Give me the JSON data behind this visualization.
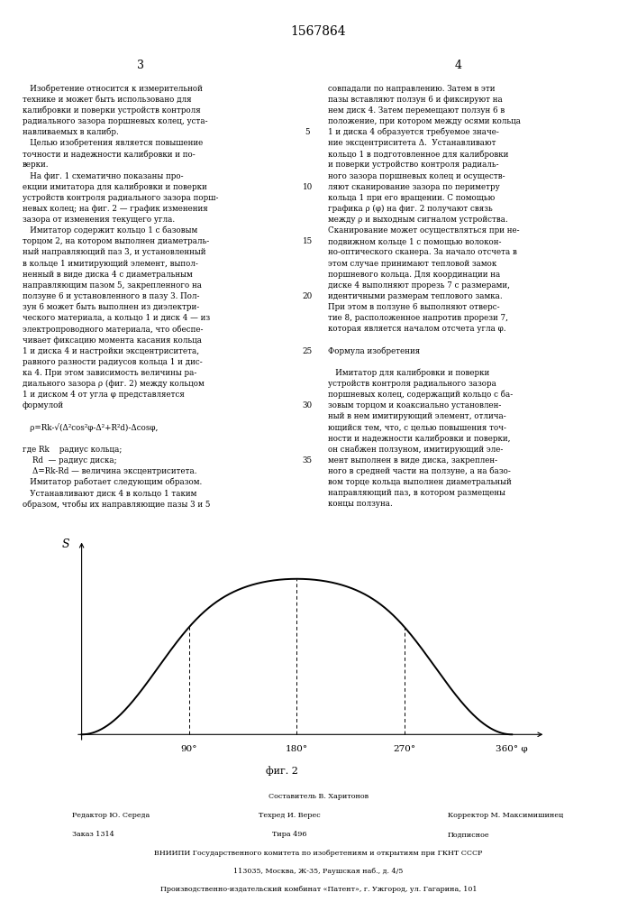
{
  "title": "1567864",
  "page_bg": "#ffffff",
  "left_col_header": "3",
  "right_col_header": "4",
  "left_col_text": [
    "   Изобретение относится к измерительной",
    "технике и может быть использовано для",
    "калибровки и поверки устройств контроля",
    "радиального зазора поршневых колец, уста-",
    "навливаемых в калибр.",
    "   Целью изобретения является повышение",
    "точности и надежности калибровки и по-",
    "верки.",
    "   На фиг. 1 схематично показаны про-",
    "екции имитатора для калибровки и поверки",
    "устройств контроля радиального зазора порш-",
    "невых колец; на фиг. 2 — график изменения",
    "зазора от изменения текущего угла.",
    "   Имитатор содержит кольцо 1 с базовым",
    "торцом 2, на котором выполнен диаметраль-",
    "ный направляющий паз 3, и установленный",
    "в кольце 1 имитирующий элемент, выпол-",
    "ненный в виде диска 4 с диаметральным",
    "направляющим пазом 5, закрепленного на",
    "ползуне 6 и установленного в пазу 3. Пол-",
    "зун 6 может быть выполнен из диэлектри-",
    "ческого материала, а кольцо 1 и диск 4 — из",
    "электропроводного материала, что обеспе-",
    "чивает фиксацию момента касания кольца",
    "1 и диска 4 и настройки эксцентриситета,",
    "равного разности радиусов кольца 1 и дис-",
    "ка 4. При этом зависимость величины ра-",
    "диального зазора ρ (фиг. 2) между кольцом",
    "1 и диском 4 от угла φ представляется",
    "формулой",
    "",
    "   ρ=Rk-√(Δ²cos²φ-Δ²+R²d)-Δcosφ,",
    "",
    "где Rk    радиус кольца;",
    "    Rd  — радиус диска;",
    "    Δ=Rk-Rd — величина эксцентриситета.",
    "   Имитатор работает следующим образом.",
    "   Устанавливают диск 4 в кольцо 1 таким",
    "образом, чтобы их направляющие пазы 3 и 5"
  ],
  "right_col_text": [
    "совпадали по направлению. Затем в эти",
    "пазы вставляют ползун 6 и фиксируют на",
    "нем диск 4. Затем перемещают ползун 6 в",
    "положение, при котором между осями кольца",
    "1 и диска 4 образуется требуемое значе-",
    "ние эксцентриситета Δ.  Устанавливают",
    "кольцо 1 в подготовленное для калибровки",
    "и поверки устройство контроля радиаль-",
    "ного зазора поршневых колец и осуществ-",
    "ляют сканирование зазора по периметру",
    "кольца 1 при его вращении. С помощью",
    "графика ρ (φ) на фиг. 2 получают связь",
    "между ρ и выходным сигналом устройства.",
    "Сканирование может осуществляться при не-",
    "подвижном кольце 1 с помощью волокон-",
    "но-оптического сканера. За начало отсчета в",
    "этом случае принимают тепловой замок",
    "поршневого кольца. Для координации на",
    "диске 4 выполняют прорезь 7 с размерами,",
    "идентичными размерам теплового замка.",
    "При этом в ползуне 6 выполняют отверс-",
    "тие 8, расположенное напротив прорези 7,",
    "которая является началом отсчета угла φ.",
    "",
    "Формула изобретения",
    "",
    "   Имитатор для калибровки и поверки",
    "устройств контроля радиального зазора",
    "поршневых колец, содержащий кольцо с ба-",
    "зовым торцом и коаксиально установлен-",
    "ный в нем имитирующий элемент, отлича-",
    "ющийся тем, что, с целью повышения точ-",
    "ности и надежности калибровки и поверки,",
    "он снабжен ползуном, имитирующий эле-",
    "мент выполнен в виде диска, закреплен-",
    "ного в средней части на ползуне, а на базо-",
    "вом торце кольца выполнен диаметральный",
    "направляющий паз, в котором размещены",
    "концы ползуна."
  ],
  "line_numbers": [
    5,
    10,
    15,
    20,
    25,
    30,
    35
  ],
  "graph_caption": "фиг. 2",
  "footer_line0": "Составитель В. Харитонов",
  "footer_line1_left": "Редактор Ю. Середа",
  "footer_line1_mid": "Техред И. Верес",
  "footer_line1_right": "Корректор М. Максимишинец",
  "footer_line2_left": "Заказ 1314",
  "footer_line2_mid": "Тира 496",
  "footer_line2_right": "Подписное",
  "footer_line3": "ВНИИПИ Государственного комитета по изобретениям и открытиям при ГКНТ СССР",
  "footer_line4": "113035, Москва, Ж-35, Раушская наб., д. 4/5",
  "footer_line5": "Производственно-издательский комбинат «Патент», г. Ужгород, ул. Гагарина, 101"
}
